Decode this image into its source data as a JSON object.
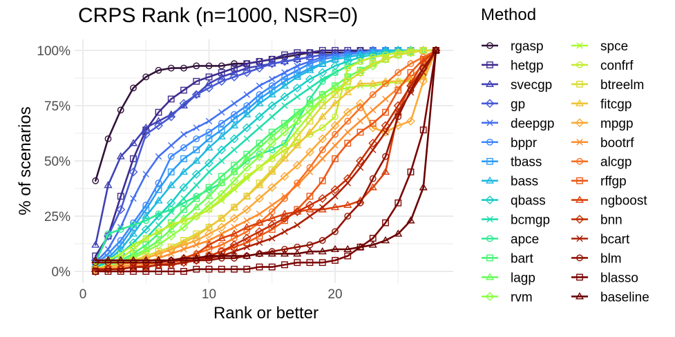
{
  "chart_data": {
    "type": "line",
    "title": "CRPS Rank (n=1000, NSR=0)",
    "xlabel": "Rank or better",
    "ylabel": "% of scenarios",
    "xlim": [
      0,
      29
    ],
    "ylim": [
      0,
      100
    ],
    "x_ticks": [
      0,
      10,
      20
    ],
    "y_ticks": [
      "0%",
      "25%",
      "50%",
      "75%",
      "100%"
    ],
    "grid": true,
    "legend_title": "Method",
    "legend_position": "right",
    "x": [
      1,
      2,
      3,
      4,
      5,
      6,
      7,
      8,
      9,
      10,
      11,
      12,
      13,
      14,
      15,
      16,
      17,
      18,
      19,
      20,
      21,
      22,
      23,
      24,
      25,
      26,
      27,
      28
    ],
    "series": [
      {
        "name": "rgasp",
        "color": "#30123B",
        "shape": "circle",
        "values": [
          41,
          60,
          73,
          83,
          88,
          91,
          92,
          92,
          93,
          93,
          93,
          94,
          94,
          95,
          96,
          97,
          98,
          99,
          99,
          99,
          99,
          100,
          100,
          100,
          100,
          100,
          100,
          100
        ]
      },
      {
        "name": "hetgp",
        "color": "#3E2B8C",
        "shape": "square",
        "values": [
          7,
          16,
          34,
          51,
          64,
          72,
          78,
          82,
          86,
          88,
          90,
          92,
          94,
          95,
          96,
          98,
          99,
          99,
          100,
          100,
          100,
          100,
          100,
          100,
          100,
          100,
          100,
          100
        ]
      },
      {
        "name": "svecgp",
        "color": "#4141B4",
        "shape": "triangle",
        "values": [
          12,
          39,
          52,
          58,
          65,
          68,
          71,
          75,
          80,
          85,
          88,
          90,
          92,
          93,
          94,
          95,
          96,
          97,
          98,
          98,
          99,
          99,
          100,
          100,
          100,
          100,
          100,
          100
        ]
      },
      {
        "name": "gp",
        "color": "#4558D4",
        "shape": "diamond",
        "values": [
          5,
          16,
          28,
          45,
          62,
          66,
          70,
          76,
          80,
          83,
          86,
          88,
          90,
          92,
          94,
          95,
          96,
          97,
          98,
          98,
          99,
          99,
          100,
          100,
          100,
          100,
          100,
          100
        ]
      },
      {
        "name": "deepgp",
        "color": "#4570F0",
        "shape": "x",
        "values": [
          4,
          10,
          20,
          33,
          44,
          52,
          57,
          62,
          65,
          68,
          72,
          76,
          80,
          84,
          87,
          90,
          93,
          95,
          97,
          98,
          99,
          99,
          100,
          100,
          100,
          100,
          100,
          100
        ]
      },
      {
        "name": "bppr",
        "color": "#3E87FB",
        "shape": "circle",
        "values": [
          3,
          8,
          14,
          22,
          30,
          40,
          52,
          56,
          60,
          63,
          67,
          71,
          75,
          80,
          84,
          88,
          91,
          94,
          96,
          97,
          98,
          99,
          100,
          100,
          100,
          100,
          100,
          100
        ]
      },
      {
        "name": "tbass",
        "color": "#2F9DF5",
        "shape": "square",
        "values": [
          2,
          6,
          12,
          20,
          28,
          37,
          45,
          51,
          55,
          60,
          64,
          69,
          73,
          78,
          82,
          86,
          89,
          92,
          94,
          96,
          97,
          98,
          99,
          100,
          100,
          100,
          100,
          100
        ]
      },
      {
        "name": "bass",
        "color": "#1FB8DF",
        "shape": "triangle",
        "values": [
          2,
          5,
          10,
          17,
          25,
          32,
          39,
          45,
          50,
          56,
          61,
          66,
          71,
          76,
          80,
          84,
          88,
          91,
          94,
          96,
          97,
          98,
          99,
          100,
          100,
          100,
          100,
          100
        ]
      },
      {
        "name": "qbass",
        "color": "#18CDC8",
        "shape": "diamond",
        "values": [
          2,
          4,
          8,
          13,
          19,
          25,
          31,
          38,
          44,
          49,
          55,
          60,
          65,
          70,
          75,
          79,
          83,
          87,
          90,
          93,
          95,
          97,
          98,
          99,
          100,
          100,
          100,
          100
        ]
      },
      {
        "name": "bcmgp",
        "color": "#1FDDAE",
        "shape": "x",
        "values": [
          1,
          3,
          6,
          10,
          15,
          21,
          27,
          33,
          39,
          45,
          50,
          55,
          60,
          65,
          70,
          75,
          79,
          83,
          87,
          90,
          93,
          95,
          97,
          98,
          99,
          100,
          100,
          100
        ]
      },
      {
        "name": "apce",
        "color": "#2CE994",
        "shape": "circle",
        "values": [
          4,
          17,
          19,
          21,
          23,
          26,
          28,
          31,
          34,
          37,
          40,
          45,
          50,
          53,
          55,
          58,
          68,
          78,
          86,
          90,
          93,
          95,
          97,
          98,
          99,
          100,
          100,
          100
        ]
      },
      {
        "name": "bart",
        "color": "#47F474",
        "shape": "square",
        "values": [
          1,
          3,
          5,
          8,
          12,
          17,
          22,
          28,
          33,
          38,
          43,
          48,
          53,
          58,
          63,
          67,
          72,
          76,
          80,
          84,
          88,
          91,
          94,
          96,
          98,
          99,
          100,
          100
        ]
      },
      {
        "name": "lagp",
        "color": "#6AFC59",
        "shape": "triangle",
        "values": [
          1,
          2,
          4,
          7,
          10,
          14,
          19,
          24,
          29,
          34,
          40,
          45,
          51,
          56,
          61,
          66,
          71,
          76,
          80,
          84,
          88,
          91,
          94,
          96,
          98,
          99,
          100,
          100
        ]
      },
      {
        "name": "rvm",
        "color": "#8DFF44",
        "shape": "diamond",
        "values": [
          1,
          2,
          4,
          6,
          9,
          12,
          16,
          20,
          25,
          30,
          35,
          41,
          47,
          52,
          58,
          63,
          68,
          73,
          78,
          82,
          86,
          90,
          93,
          96,
          98,
          99,
          100,
          100
        ]
      },
      {
        "name": "spce",
        "color": "#A8F931",
        "shape": "x",
        "values": [
          3,
          5,
          8,
          12,
          15,
          18,
          21,
          23,
          25,
          28,
          32,
          37,
          42,
          47,
          52,
          57,
          64,
          71,
          78,
          82,
          83,
          84,
          84,
          85,
          86,
          86,
          88,
          100
        ]
      },
      {
        "name": "confrf",
        "color": "#C3ED2D",
        "shape": "circle",
        "values": [
          1,
          3,
          6,
          10,
          15,
          18,
          21,
          23,
          25,
          28,
          33,
          38,
          43,
          47,
          51,
          55,
          58,
          62,
          65,
          70,
          92,
          95,
          97,
          98,
          99,
          100,
          100,
          100
        ]
      },
      {
        "name": "btreelm",
        "color": "#D9DC34",
        "shape": "square",
        "values": [
          1,
          2,
          3,
          5,
          7,
          9,
          11,
          14,
          17,
          20,
          24,
          29,
          34,
          40,
          46,
          53,
          61,
          68,
          75,
          80,
          86,
          90,
          94,
          96,
          98,
          99,
          100,
          100
        ]
      },
      {
        "name": "fitcgp",
        "color": "#EDC439",
        "shape": "triangle",
        "values": [
          1,
          2,
          3,
          5,
          6,
          8,
          10,
          13,
          16,
          20,
          24,
          29,
          34,
          39,
          45,
          51,
          57,
          63,
          70,
          76,
          81,
          85,
          85,
          86,
          86,
          87,
          88,
          100
        ]
      },
      {
        "name": "mpgp",
        "color": "#FAAA37",
        "shape": "diamond",
        "values": [
          1,
          2,
          3,
          4,
          6,
          8,
          10,
          12,
          14,
          17,
          20,
          24,
          28,
          33,
          38,
          43,
          48,
          54,
          60,
          66,
          72,
          76,
          65,
          63,
          66,
          68,
          86,
          100
        ]
      },
      {
        "name": "bootrf",
        "color": "#FD8E2E",
        "shape": "x",
        "values": [
          1,
          1,
          2,
          3,
          4,
          6,
          8,
          10,
          12,
          14,
          17,
          20,
          23,
          26,
          30,
          34,
          39,
          45,
          51,
          57,
          63,
          68,
          73,
          78,
          83,
          88,
          93,
          100
        ]
      },
      {
        "name": "alcgp",
        "color": "#F87223",
        "shape": "circle",
        "values": [
          0,
          1,
          1,
          2,
          3,
          4,
          5,
          6,
          8,
          10,
          12,
          15,
          18,
          22,
          27,
          33,
          40,
          47,
          55,
          62,
          68,
          74,
          80,
          85,
          90,
          94,
          97,
          100
        ]
      },
      {
        "name": "rffgp",
        "color": "#EC5917",
        "shape": "square",
        "values": [
          0,
          1,
          1,
          2,
          2,
          3,
          4,
          5,
          6,
          7,
          9,
          11,
          13,
          16,
          19,
          23,
          28,
          34,
          41,
          51,
          58,
          63,
          67,
          72,
          82,
          90,
          96,
          100
        ]
      },
      {
        "name": "ngboost",
        "color": "#DA410D",
        "shape": "triangle",
        "values": [
          5,
          5,
          5,
          5,
          5,
          5,
          5,
          6,
          8,
          12,
          15,
          17,
          20,
          22,
          24,
          26,
          27,
          28,
          28,
          29,
          30,
          32,
          38,
          45,
          72,
          85,
          95,
          100
        ]
      },
      {
        "name": "bnn",
        "color": "#C52F06",
        "shape": "diamond",
        "values": [
          0,
          1,
          1,
          2,
          2,
          3,
          3,
          4,
          5,
          7,
          9,
          12,
          15,
          18,
          21,
          24,
          27,
          30,
          33,
          37,
          42,
          50,
          58,
          66,
          75,
          84,
          92,
          100
        ]
      },
      {
        "name": "bcart",
        "color": "#AC1F02",
        "shape": "x",
        "values": [
          1,
          1,
          1,
          2,
          2,
          3,
          3,
          4,
          5,
          6,
          7,
          9,
          11,
          13,
          15,
          18,
          21,
          25,
          29,
          34,
          40,
          47,
          55,
          63,
          72,
          81,
          90,
          100
        ]
      },
      {
        "name": "blm",
        "color": "#921302",
        "shape": "circle",
        "values": [
          4,
          4,
          4,
          4,
          4,
          4,
          5,
          5,
          5,
          5,
          6,
          6,
          7,
          8,
          9,
          10,
          11,
          12,
          14,
          18,
          25,
          31,
          42,
          52,
          70,
          82,
          92,
          100
        ]
      },
      {
        "name": "blasso",
        "color": "#7A0403",
        "shape": "square",
        "values": [
          0,
          0,
          0,
          0,
          0,
          0,
          0,
          0,
          1,
          1,
          1,
          1,
          1,
          2,
          2,
          3,
          4,
          4,
          4,
          5,
          7,
          11,
          15,
          22,
          31,
          45,
          64,
          100
        ]
      },
      {
        "name": "baseline",
        "color": "#6A0000",
        "shape": "triangle",
        "values": [
          5,
          5,
          5,
          5,
          5,
          5,
          5,
          6,
          6,
          7,
          7,
          7,
          7,
          8,
          8,
          8,
          8,
          9,
          9,
          10,
          10,
          11,
          12,
          14,
          17,
          23,
          38,
          100
        ]
      }
    ]
  }
}
